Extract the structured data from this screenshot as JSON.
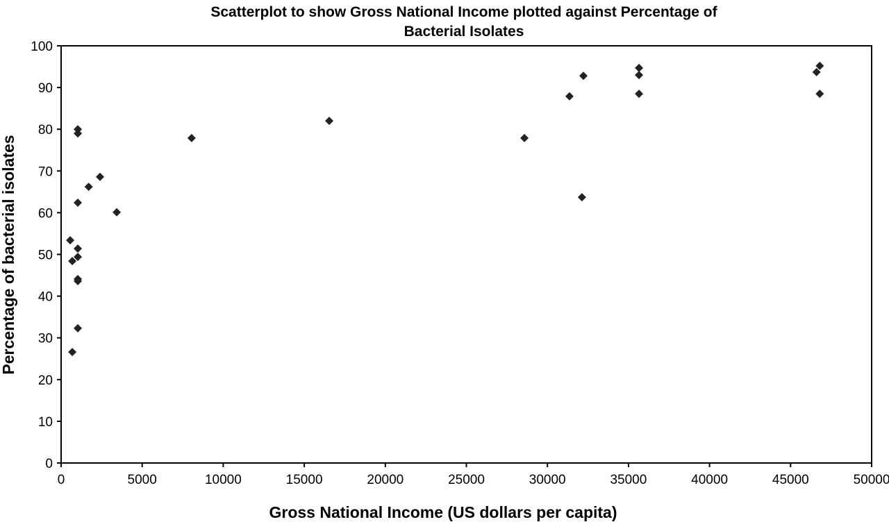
{
  "chart_data": {
    "type": "scatter",
    "title_lines": [
      "Scatterplot to show Gross National Income plotted against Percentage of",
      "Bacterial Isolates"
    ],
    "xlabel": "Gross National Income (US dollars per capita)",
    "ylabel": "Percentage of bacterial isolates",
    "xlim": [
      0,
      50000
    ],
    "ylim": [
      0,
      100
    ],
    "xticks": [
      0,
      5000,
      10000,
      15000,
      20000,
      25000,
      30000,
      35000,
      40000,
      45000,
      50000
    ],
    "yticks": [
      0,
      10,
      20,
      30,
      40,
      50,
      60,
      70,
      80,
      90,
      100
    ],
    "grid": false,
    "marker": "diamond",
    "color": "#222222",
    "points": [
      [
        1030,
        80.0
      ],
      [
        1030,
        79.0
      ],
      [
        1700,
        66.2
      ],
      [
        2400,
        68.6
      ],
      [
        1030,
        62.4
      ],
      [
        3430,
        60.1
      ],
      [
        560,
        53.4
      ],
      [
        1030,
        51.4
      ],
      [
        690,
        48.4
      ],
      [
        1030,
        49.4
      ],
      [
        1030,
        44.1
      ],
      [
        1030,
        43.6
      ],
      [
        1030,
        32.3
      ],
      [
        690,
        26.6
      ],
      [
        8050,
        77.9
      ],
      [
        16540,
        82.0
      ],
      [
        28580,
        77.9
      ],
      [
        31360,
        87.9
      ],
      [
        32220,
        92.8
      ],
      [
        32130,
        63.7
      ],
      [
        35650,
        94.7
      ],
      [
        35650,
        93.0
      ],
      [
        35650,
        88.5
      ],
      [
        46600,
        93.7
      ],
      [
        46800,
        95.2
      ],
      [
        46800,
        88.5
      ]
    ]
  }
}
